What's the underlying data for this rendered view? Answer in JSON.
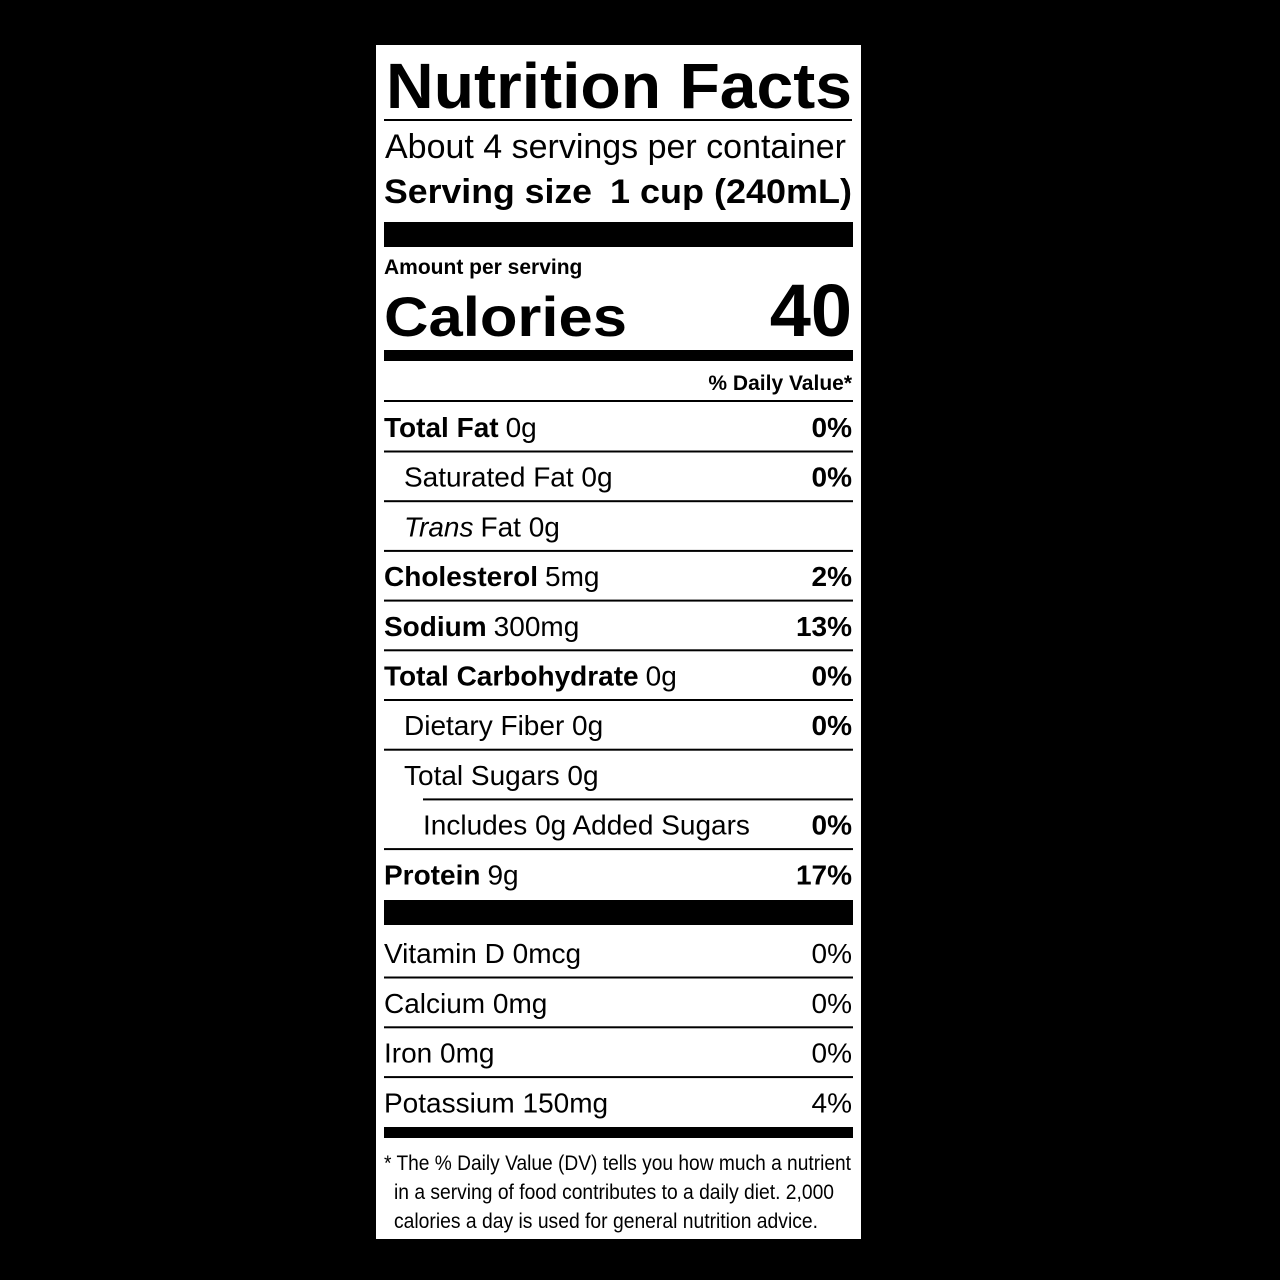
{
  "header": {
    "title": "Nutrition Facts",
    "servings": "About 4 servings per container",
    "serving_size_label": "Serving size",
    "serving_size_value": "1 cup (240mL)"
  },
  "calories": {
    "amount_label": "Amount per serving",
    "label": "Calories",
    "value": "40"
  },
  "daily_value_header": "% Daily Value*",
  "nutrients": [
    {
      "name": "Total Fat",
      "amount": "0g",
      "dv": "0%",
      "bold": true,
      "indent": 0
    },
    {
      "name": "Saturated Fat 0g",
      "dv": "0%",
      "bold": false,
      "indent": 1
    },
    {
      "name_italic": "Trans",
      "name": "Fat 0g",
      "bold": false,
      "indent": 1
    },
    {
      "name": "Cholesterol",
      "amount": "5mg",
      "dv": "2%",
      "bold": true,
      "indent": 0
    },
    {
      "name": "Sodium",
      "amount": "300mg",
      "dv": "13%",
      "bold": true,
      "indent": 0
    },
    {
      "name": "Total Carbohydrate",
      "amount": "0g",
      "dv": "0%",
      "bold": true,
      "indent": 0
    },
    {
      "name": "Dietary Fiber 0g",
      "dv": "0%",
      "bold": false,
      "indent": 1
    },
    {
      "name": "Total Sugars 0g",
      "bold": false,
      "indent": 1
    },
    {
      "name": "Includes 0g Added Sugars",
      "dv": "0%",
      "bold": false,
      "indent": 2
    },
    {
      "name": "Protein",
      "amount": "9g",
      "dv": "17%",
      "bold": true,
      "indent": 0
    }
  ],
  "vitamins": [
    {
      "name": "Vitamin D 0mcg",
      "dv": "0%"
    },
    {
      "name": "Calcium 0mg",
      "dv": "0%"
    },
    {
      "name": "Iron 0mg",
      "dv": "0%"
    },
    {
      "name": "Potassium 150mg",
      "dv": "4%"
    }
  ],
  "footnote": [
    "* The % Daily Value (DV) tells you how much a nutrient",
    "in a serving of food contributes to a daily diet. 2,000",
    "calories a day is used for general nutrition advice."
  ]
}
